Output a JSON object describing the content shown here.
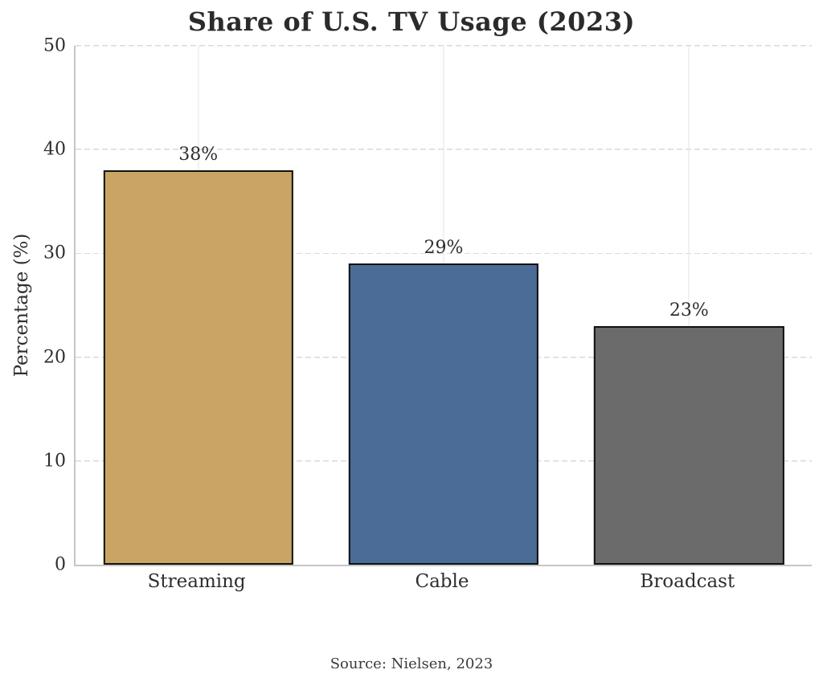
{
  "chart_data": {
    "type": "bar",
    "title": "Share of U.S. TV Usage (2023)",
    "ylabel": "Percentage (%)",
    "xlabel": "",
    "categories": [
      "Streaming",
      "Cable",
      "Broadcast"
    ],
    "values": [
      38,
      29,
      23
    ],
    "value_labels": [
      "38%",
      "29%",
      "23%"
    ],
    "bar_colors": [
      "#C9A464",
      "#4A6C96",
      "#6B6B6B"
    ],
    "bar_edge_color": "#111111",
    "ylim": [
      0,
      50
    ],
    "yticks": [
      0,
      10,
      20,
      30,
      40,
      50
    ],
    "grid": {
      "horizontal": "dashed at each y tick",
      "vertical": "solid light line at each bar center"
    },
    "legend": "none",
    "source_note": "Source: Nielsen, 2023"
  }
}
